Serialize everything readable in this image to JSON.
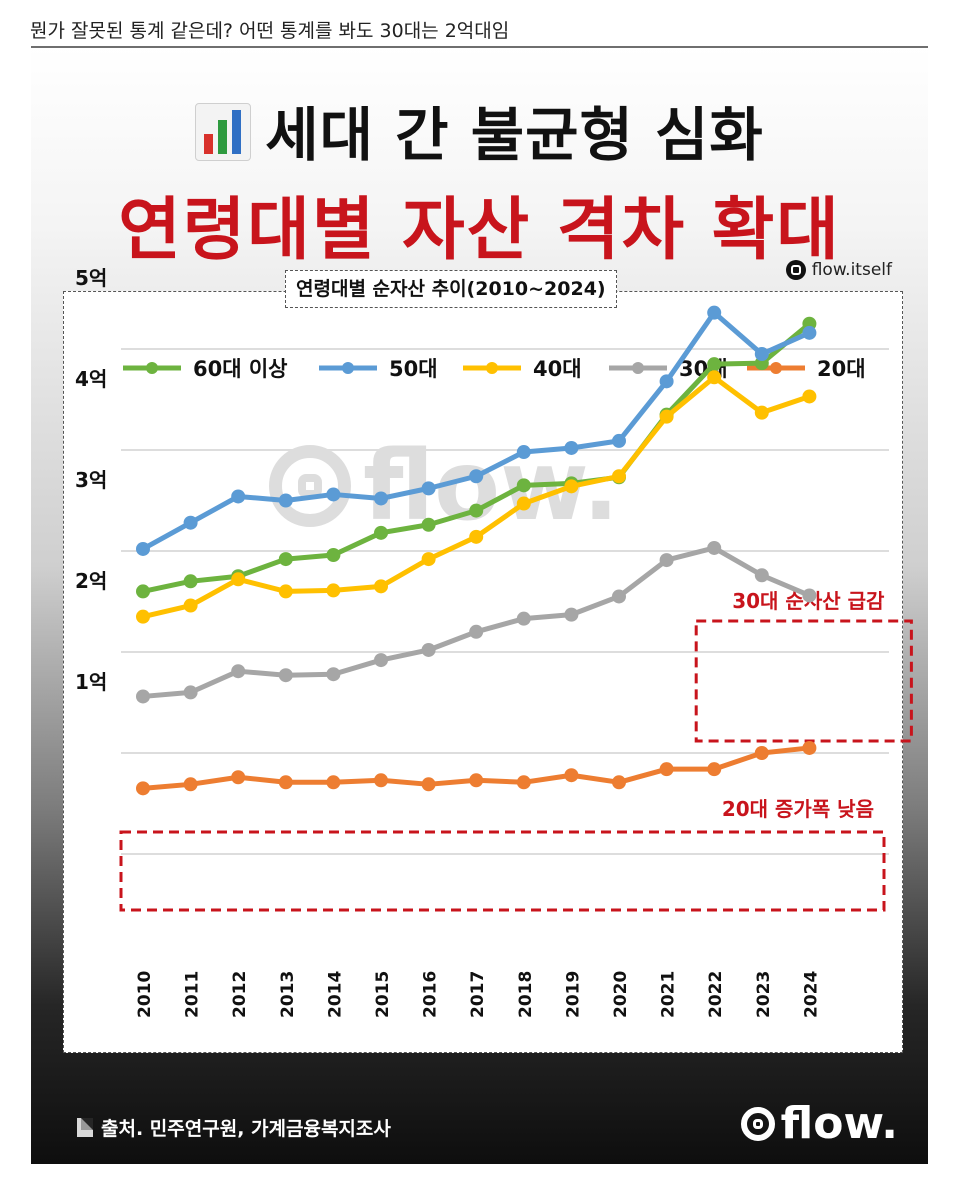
{
  "post": {
    "text": "뭔가 잘못된 통계 같은데? 어떤 통계를 봐도 30대는 2억대임"
  },
  "card": {
    "headline": "세대 간 불균형 심화",
    "headline_icon": "bar-chart-icon",
    "subheadline": "연령대별 자산 격차 확대",
    "handle": "flow.itself",
    "watermark": "flow.",
    "source": "출처. 민주연구원, 가계금융복지조사",
    "brand": "flow."
  },
  "colors": {
    "60대 이상": "#6db33f",
    "50대": "#5b9bd5",
    "40대": "#ffc000",
    "30대": "#a6a6a6",
    "20대": "#ed7d31",
    "annotation": "#c8141c"
  },
  "chart_data": {
    "type": "line",
    "title": "연령대별 순자산 추이(2010~2024)",
    "xlabel": "",
    "ylabel": "",
    "x": [
      "2010",
      "2011",
      "2012",
      "2013",
      "2014",
      "2015",
      "2016",
      "2017",
      "2018",
      "2019",
      "2020",
      "2021",
      "2022",
      "2023",
      "2024"
    ],
    "yticks": [
      "1억",
      "2억",
      "3억",
      "4억",
      "5억"
    ],
    "ylim": [
      0,
      6
    ],
    "grid": true,
    "legend": "top",
    "series": [
      {
        "name": "60대 이상",
        "values": [
          2.6,
          2.7,
          2.75,
          2.92,
          2.96,
          3.18,
          3.26,
          3.4,
          3.65,
          3.67,
          3.73,
          4.35,
          4.85,
          4.86,
          5.25
        ]
      },
      {
        "name": "50대",
        "values": [
          3.02,
          3.28,
          3.54,
          3.5,
          3.56,
          3.52,
          3.62,
          3.74,
          3.98,
          4.02,
          4.09,
          4.68,
          5.36,
          4.95,
          5.16
        ]
      },
      {
        "name": "40대",
        "values": [
          2.35,
          2.46,
          2.72,
          2.6,
          2.61,
          2.65,
          2.92,
          3.14,
          3.47,
          3.64,
          3.74,
          4.33,
          4.72,
          4.37,
          4.53
        ]
      },
      {
        "name": "30대",
        "values": [
          1.56,
          1.6,
          1.81,
          1.77,
          1.78,
          1.92,
          2.02,
          2.2,
          2.33,
          2.37,
          2.55,
          2.91,
          3.03,
          2.76,
          2.56
        ]
      },
      {
        "name": "20대",
        "values": [
          0.65,
          0.69,
          0.76,
          0.71,
          0.71,
          0.73,
          0.69,
          0.73,
          0.71,
          0.78,
          0.71,
          0.84,
          0.84,
          1.0,
          1.05
        ]
      }
    ],
    "annotations": [
      {
        "text": "30대 순자산 급감",
        "series": "30대",
        "from": "2022",
        "to": "2024"
      },
      {
        "text": "20대 증가폭 낮음",
        "series": "20대",
        "from": "2010",
        "to": "2024"
      }
    ]
  }
}
